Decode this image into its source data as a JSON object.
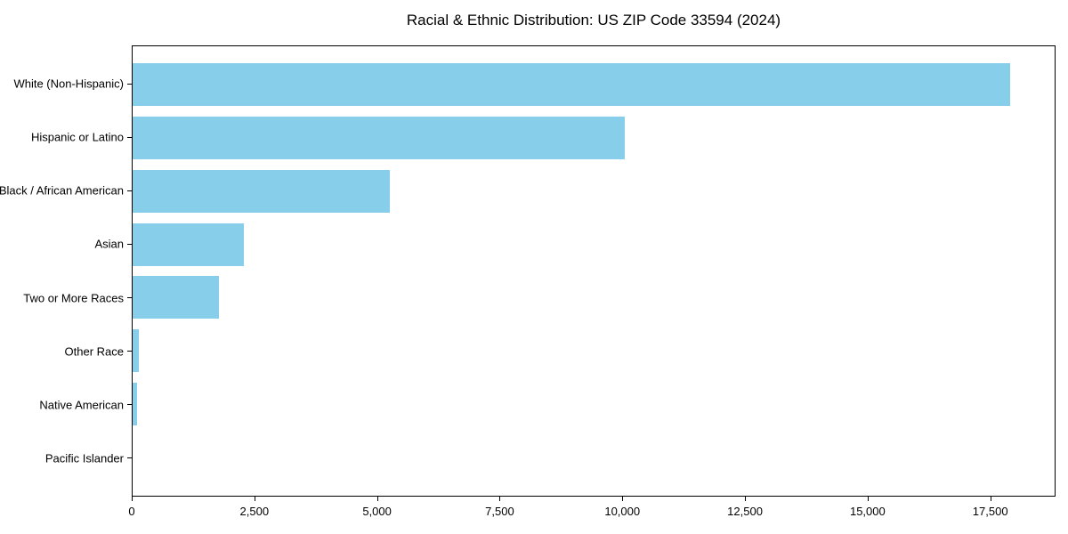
{
  "figure": {
    "background": "#ffffff"
  },
  "chart_data": {
    "type": "bar",
    "orientation": "horizontal",
    "title": "Racial & Ethnic Distribution: US ZIP Code 33594 (2024)",
    "categories": [
      "White (Non-Hispanic)",
      "Hispanic or Latino",
      "Black / African American",
      "Asian",
      "Two or More Races",
      "Other Race",
      "Native American",
      "Pacific Islander"
    ],
    "values": [
      17930,
      10050,
      5260,
      2270,
      1760,
      120,
      90,
      0
    ],
    "xlabel": "",
    "ylabel": "",
    "xlim": [
      0,
      18830
    ],
    "x_ticks": [
      0,
      2500,
      5000,
      7500,
      10000,
      12500,
      15000,
      17500
    ],
    "x_tick_labels": [
      "0",
      "2,500",
      "5,000",
      "7,500",
      "10,000",
      "12,500",
      "15,000",
      "17,500"
    ],
    "bar_color": "#87CEEB",
    "axis_color": "#000000",
    "text_color": "#000000",
    "grid": false,
    "legend": null
  }
}
